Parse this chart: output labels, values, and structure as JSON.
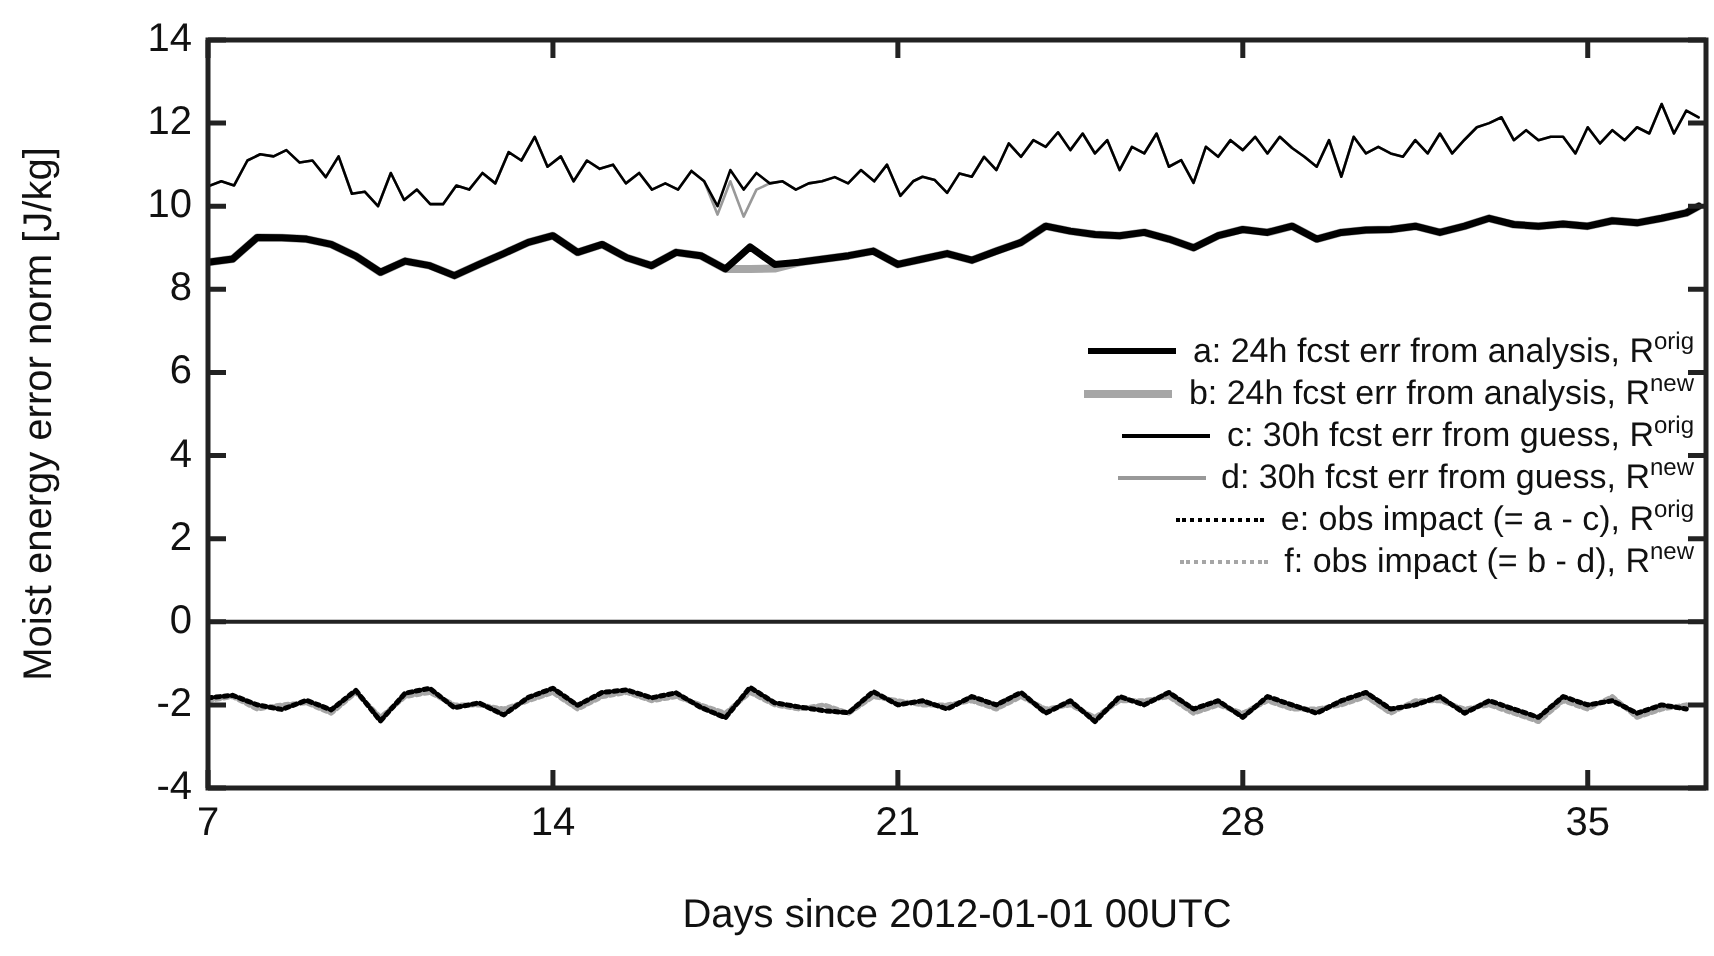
{
  "chart_data": {
    "type": "line",
    "xlabel": "Days since 2012-01-01 00UTC",
    "ylabel": "Moist energy error norm [J/kg]",
    "xlim": [
      7,
      37.4
    ],
    "xticks": [
      7,
      14,
      21,
      28,
      35
    ],
    "ylim": [
      -4,
      14
    ],
    "yticks": [
      -4,
      -2,
      0,
      2,
      4,
      6,
      8,
      10,
      12,
      14
    ],
    "legend": "right",
    "ref_lines": [
      {
        "axis": "y",
        "value": 0
      }
    ],
    "x": [
      7,
      7.27,
      7.53,
      7.8,
      8.06,
      8.33,
      8.59,
      8.86,
      9.12,
      9.39,
      9.65,
      9.92,
      10.18,
      10.45,
      10.71,
      10.98,
      11.24,
      11.51,
      11.77,
      12.04,
      12.3,
      12.57,
      12.83,
      13.1,
      13.36,
      13.63,
      13.89,
      14.16,
      14.42,
      14.69,
      14.95,
      15.22,
      15.48,
      15.75,
      16.01,
      16.28,
      16.54,
      16.81,
      17.07,
      17.34,
      17.6,
      17.87,
      18.13,
      18.4,
      18.66,
      18.93,
      19.19,
      19.46,
      19.72,
      19.99,
      20.25,
      20.52,
      20.78,
      21.05,
      21.31,
      21.5,
      21.75,
      22,
      22.25,
      22.5,
      22.75,
      23,
      23.25,
      23.5,
      23.75,
      24,
      24.25,
      24.5,
      24.75,
      25,
      25.25,
      25.5,
      25.75,
      26,
      26.25,
      26.5,
      26.75,
      27,
      27.25,
      27.5,
      27.75,
      28,
      28.25,
      28.5,
      28.75,
      29,
      29.25,
      29.5,
      29.75,
      30,
      30.25,
      30.5,
      30.75,
      31,
      31.25,
      31.5,
      31.75,
      32,
      32.25,
      32.5,
      32.75,
      33,
      33.25,
      33.5,
      33.75,
      34,
      34.25,
      34.5,
      34.75,
      35,
      35.25,
      35.5,
      35.75,
      36,
      36.25,
      36.5,
      36.75,
      37,
      37.25
    ],
    "series": [
      {
        "name": "a: 24h fcst err from analysis, R$^{orig}$",
        "color": "#000000",
        "x": [
          7,
          7.5,
          8,
          8.5,
          9,
          9.5,
          10,
          10.5,
          11,
          11.5,
          12,
          12.5,
          13,
          13.5,
          14,
          14.5,
          15,
          15.5,
          16,
          16.5,
          17,
          17.5,
          18,
          18.5,
          19,
          19.5,
          20,
          20.5,
          21,
          21.5,
          22,
          22.5,
          23,
          23.5,
          24,
          24.5,
          25,
          25.5,
          26,
          26.5,
          27,
          27.5,
          28,
          28.5,
          29,
          29.5,
          30,
          30.5,
          31,
          31.5,
          32,
          32.5,
          33,
          33.5,
          34,
          34.5,
          35,
          35.5,
          36,
          36.5,
          37,
          37.25
        ],
        "values": [
          8.65,
          8.73,
          9.25,
          9.24,
          9.21,
          9.08,
          8.8,
          8.41,
          8.68,
          8.57,
          8.33,
          8.6,
          8.86,
          9.13,
          9.29,
          8.89,
          9.08,
          8.76,
          8.57,
          8.89,
          8.81,
          8.49,
          9.02,
          8.6,
          8.65,
          8.73,
          8.81,
          8.92,
          8.6,
          8.73,
          8.86,
          8.7,
          8.92,
          9.13,
          9.52,
          9.4,
          9.32,
          9.29,
          9.37,
          9.21,
          9.0,
          9.29,
          9.44,
          9.37,
          9.52,
          9.21,
          9.37,
          9.43,
          9.44,
          9.52,
          9.37,
          9.52,
          9.71,
          9.56,
          9.52,
          9.57,
          9.52,
          9.65,
          9.6,
          9.71,
          9.84,
          10.0
        ]
      },
      {
        "name": "b: 24h fcst err from analysis, R$^{new}$",
        "color": "#a6a6a6",
        "x": [
          7,
          7.5,
          8,
          8.5,
          9,
          9.5,
          10,
          10.5,
          11,
          11.5,
          12,
          12.5,
          13,
          13.5,
          14,
          14.5,
          15,
          15.5,
          16,
          16.5,
          17,
          17.5,
          18,
          18.5,
          19,
          19.5,
          20,
          20.5,
          21,
          21.5,
          22,
          22.5,
          23,
          23.5,
          24,
          24.5,
          25,
          25.5,
          26,
          26.5,
          27,
          27.5,
          28,
          28.5,
          29,
          29.5,
          30,
          30.5,
          31,
          31.5,
          32,
          32.5,
          33,
          33.5,
          34,
          34.5,
          35,
          35.5,
          36,
          36.5,
          37,
          37.25
        ],
        "values": [
          8.65,
          8.73,
          9.25,
          9.24,
          9.21,
          9.08,
          8.8,
          8.41,
          8.68,
          8.57,
          8.33,
          8.6,
          8.86,
          9.13,
          9.29,
          8.89,
          9.08,
          8.76,
          8.57,
          8.89,
          8.81,
          8.49,
          8.49,
          8.5,
          8.65,
          8.73,
          8.81,
          8.92,
          8.6,
          8.73,
          8.86,
          8.7,
          8.92,
          9.13,
          9.52,
          9.4,
          9.32,
          9.29,
          9.37,
          9.21,
          9.0,
          9.29,
          9.44,
          9.37,
          9.52,
          9.21,
          9.37,
          9.43,
          9.44,
          9.52,
          9.37,
          9.52,
          9.71,
          9.56,
          9.52,
          9.57,
          9.52,
          9.65,
          9.6,
          9.71,
          9.84,
          10.0
        ]
      },
      {
        "name": "c: 30h fcst err from guess, R$^{orig}$",
        "color": "#000000",
        "values": [
          10.48,
          10.6,
          10.5,
          11.1,
          11.25,
          11.2,
          11.35,
          11.05,
          11.1,
          10.7,
          11.2,
          10.3,
          10.35,
          10.0,
          10.8,
          10.15,
          10.4,
          10.05,
          10.05,
          10.5,
          10.4,
          10.8,
          10.55,
          11.3,
          11.1,
          11.67,
          10.95,
          11.2,
          10.6,
          11.1,
          10.9,
          11.0,
          10.55,
          10.8,
          10.4,
          10.55,
          10.4,
          10.85,
          10.6,
          10.0,
          10.87,
          10.4,
          10.8,
          10.55,
          10.6,
          10.4,
          10.55,
          10.6,
          10.7,
          10.55,
          10.87,
          10.6,
          11.0,
          10.25,
          10.6,
          10.71,
          10.63,
          10.32,
          10.79,
          10.71,
          11.19,
          10.87,
          11.51,
          11.19,
          11.59,
          11.43,
          11.78,
          11.35,
          11.75,
          11.27,
          11.59,
          10.87,
          11.43,
          11.27,
          11.75,
          10.95,
          11.11,
          10.56,
          11.43,
          11.19,
          11.59,
          11.35,
          11.67,
          11.27,
          11.67,
          11.4,
          11.19,
          10.95,
          11.59,
          10.71,
          11.67,
          11.27,
          11.43,
          11.27,
          11.19,
          11.59,
          11.27,
          11.75,
          11.27,
          11.6,
          11.9,
          12.0,
          12.14,
          11.59,
          11.83,
          11.59,
          11.67,
          11.67,
          11.27,
          11.9,
          11.51,
          11.83,
          11.59,
          11.9,
          11.75,
          12.46,
          11.75,
          12.3,
          12.14
        ]
      },
      {
        "name": "d: 30h fcst err from guess, R$^{new}$",
        "color": "#999999",
        "values": [
          10.48,
          10.6,
          10.5,
          11.1,
          11.25,
          11.2,
          11.35,
          11.05,
          11.1,
          10.7,
          11.2,
          10.3,
          10.35,
          10.0,
          10.8,
          10.15,
          10.4,
          10.05,
          10.05,
          10.5,
          10.4,
          10.8,
          10.55,
          11.3,
          11.1,
          11.67,
          10.95,
          11.2,
          10.6,
          11.1,
          10.9,
          11.0,
          10.55,
          10.8,
          10.4,
          10.55,
          10.4,
          10.85,
          10.6,
          9.8,
          10.6,
          9.75,
          10.4,
          10.55,
          10.6,
          10.4,
          10.55,
          10.6,
          10.7,
          10.55,
          10.87,
          10.6,
          11.0,
          10.25,
          10.6,
          10.71,
          10.63,
          10.32,
          10.79,
          10.71,
          11.19,
          10.87,
          11.51,
          11.19,
          11.59,
          11.43,
          11.78,
          11.35,
          11.75,
          11.27,
          11.59,
          10.87,
          11.43,
          11.27,
          11.75,
          10.95,
          11.11,
          10.56,
          11.43,
          11.19,
          11.59,
          11.35,
          11.67,
          11.27,
          11.67,
          11.4,
          11.19,
          10.95,
          11.59,
          10.71,
          11.67,
          11.27,
          11.43,
          11.27,
          11.19,
          11.59,
          11.27,
          11.75,
          11.27,
          11.6,
          11.9,
          12.0,
          12.14,
          11.59,
          11.83,
          11.59,
          11.67,
          11.67,
          11.27,
          11.9,
          11.51,
          11.83,
          11.59,
          11.9,
          11.75,
          12.46,
          11.75,
          12.3,
          12.14
        ]
      },
      {
        "name": "e: obs impact (= a - c), R$^{orig}$",
        "color": "#000000",
        "line_style": "dotted",
        "x": [
          7,
          7.5,
          8,
          8.5,
          9,
          9.5,
          10,
          10.5,
          11,
          11.5,
          12,
          12.5,
          13,
          13.5,
          14,
          14.5,
          15,
          15.5,
          16,
          16.5,
          17,
          17.5,
          18,
          18.5,
          19,
          19.5,
          20,
          20.5,
          21,
          21.5,
          22,
          22.5,
          23,
          23.5,
          24,
          24.5,
          25,
          25.5,
          26,
          26.5,
          27,
          27.5,
          28,
          28.5,
          29,
          29.5,
          30,
          30.5,
          31,
          31.5,
          32,
          32.5,
          33,
          33.5,
          34,
          34.5,
          35,
          35.5,
          36,
          36.5,
          37
        ],
        "values": [
          -1.83,
          -1.77,
          -2.0,
          -2.11,
          -1.89,
          -2.12,
          -1.65,
          -2.39,
          -1.72,
          -1.6,
          -2.07,
          -1.95,
          -2.24,
          -1.82,
          -1.6,
          -2.01,
          -1.7,
          -1.64,
          -1.83,
          -1.71,
          -2.06,
          -2.31,
          -1.58,
          -1.95,
          -2.05,
          -2.14,
          -2.19,
          -1.68,
          -2.0,
          -1.9,
          -2.1,
          -1.8,
          -2.0,
          -1.7,
          -2.2,
          -1.9,
          -2.4,
          -1.8,
          -2.0,
          -1.7,
          -2.1,
          -1.9,
          -2.3,
          -1.8,
          -2.0,
          -2.2,
          -1.9,
          -1.7,
          -2.1,
          -2.0,
          -1.8,
          -2.2,
          -1.9,
          -2.1,
          -2.3,
          -1.8,
          -2.0,
          -1.9,
          -2.2,
          -2.0,
          -2.1
        ]
      },
      {
        "name": "f: obs impact (= b - d), R$^{new}$",
        "color": "#a6a6a6",
        "line_style": "dotted",
        "x": [
          7,
          7.5,
          8,
          8.5,
          9,
          9.5,
          10,
          10.5,
          11,
          11.5,
          12,
          12.5,
          13,
          13.5,
          14,
          14.5,
          15,
          15.5,
          16,
          16.5,
          17,
          17.5,
          18,
          18.5,
          19,
          19.5,
          20,
          20.5,
          21,
          21.5,
          22,
          22.5,
          23,
          23.5,
          24,
          24.5,
          25,
          25.5,
          26,
          26.5,
          27,
          27.5,
          28,
          28.5,
          29,
          29.5,
          30,
          30.5,
          31,
          31.5,
          32,
          32.5,
          33,
          33.5,
          34,
          34.5,
          35,
          35.5,
          36,
          36.5,
          37
        ],
        "values": [
          -1.9,
          -1.8,
          -2.1,
          -2.0,
          -1.95,
          -2.2,
          -1.7,
          -2.3,
          -1.8,
          -1.7,
          -2.0,
          -2.0,
          -2.1,
          -1.9,
          -1.7,
          -2.1,
          -1.8,
          -1.7,
          -1.9,
          -1.8,
          -2.0,
          -2.2,
          -1.7,
          -2.0,
          -2.1,
          -2.0,
          -2.2,
          -1.8,
          -1.9,
          -2.0,
          -2.0,
          -1.9,
          -2.1,
          -1.8,
          -2.1,
          -2.0,
          -2.3,
          -1.9,
          -1.9,
          -1.8,
          -2.2,
          -2.0,
          -2.2,
          -1.9,
          -2.1,
          -2.1,
          -2.0,
          -1.8,
          -2.2,
          -1.9,
          -1.9,
          -2.1,
          -2.0,
          -2.2,
          -2.4,
          -1.9,
          -2.1,
          -1.8,
          -2.3,
          -2.1,
          -2.0
        ]
      }
    ]
  }
}
